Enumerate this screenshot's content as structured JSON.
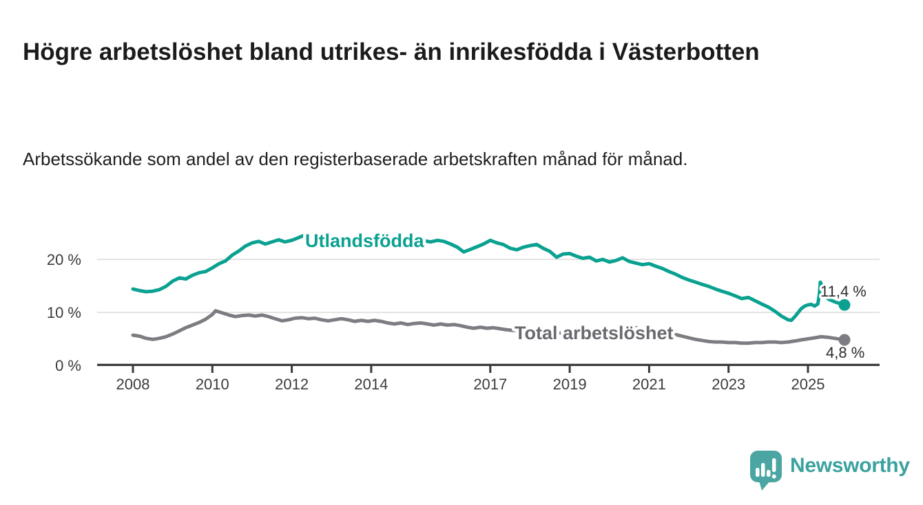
{
  "title": "Högre arbetslöshet bland utrikes- än inrikesfödda i Västerbotten",
  "subtitle": "Arbetssökande som andel av den registerbaserade arbetskraften månad för månad.",
  "branding": {
    "logo_text": "Newsworthy",
    "logo_icon": "bar-chart-speech-bubble-icon",
    "logo_text_color": "#3aa29f",
    "logo_icon_color": "#4ba6a3"
  },
  "chart_data": {
    "type": "line",
    "title": "Högre arbetslöshet bland utrikes- än inrikesfödda i Västerbotten",
    "subtitle": "Arbetssökande som andel av den registerbaserade arbetskraften månad för månad.",
    "x_axis": {
      "ticks": [
        2008,
        2010,
        2012,
        2014,
        2017,
        2019,
        2021,
        2023,
        2025
      ],
      "tick_labels": [
        "2008",
        "2010",
        "2012",
        "2014",
        "2017",
        "2019",
        "2021",
        "2023",
        "2025"
      ],
      "range": [
        2007.1,
        2026.8
      ],
      "grid": false
    },
    "y_axis": {
      "unit": "%",
      "tick_values": [
        0,
        10,
        20
      ],
      "tick_labels": [
        "0 %",
        "10 %",
        "20 %"
      ],
      "range": [
        0,
        26.5
      ],
      "grid": true
    },
    "styles": {
      "axis_color": "#3a3a3a",
      "grid_color": "#dadada",
      "tick_label_color": "#3b3b3b",
      "line_width": 5
    },
    "series": [
      {
        "name": "Utlandsfödda",
        "color": "#0aa191",
        "end_label": "11,4 %",
        "end_value": 11.4,
        "points": [
          [
            2008.0,
            14.4
          ],
          [
            2008.17,
            14.1
          ],
          [
            2008.33,
            13.9
          ],
          [
            2008.5,
            14.0
          ],
          [
            2008.67,
            14.3
          ],
          [
            2008.83,
            14.9
          ],
          [
            2009.0,
            15.9
          ],
          [
            2009.17,
            16.5
          ],
          [
            2009.33,
            16.3
          ],
          [
            2009.5,
            17.0
          ],
          [
            2009.67,
            17.5
          ],
          [
            2009.83,
            17.7
          ],
          [
            2010.0,
            18.4
          ],
          [
            2010.17,
            19.2
          ],
          [
            2010.33,
            19.7
          ],
          [
            2010.5,
            20.8
          ],
          [
            2010.67,
            21.6
          ],
          [
            2010.83,
            22.5
          ],
          [
            2011.0,
            23.1
          ],
          [
            2011.17,
            23.4
          ],
          [
            2011.33,
            22.9
          ],
          [
            2011.5,
            23.3
          ],
          [
            2011.67,
            23.7
          ],
          [
            2011.83,
            23.3
          ],
          [
            2012.0,
            23.6
          ],
          [
            2012.17,
            24.1
          ],
          [
            2012.33,
            24.6
          ],
          [
            2012.5,
            24.2
          ],
          [
            2012.67,
            23.9
          ],
          [
            2012.83,
            23.8
          ],
          [
            2013.0,
            24.0
          ],
          [
            2013.17,
            23.8
          ],
          [
            2013.33,
            23.6
          ],
          [
            2013.5,
            23.8
          ],
          [
            2013.67,
            24.0
          ],
          [
            2013.83,
            23.7
          ],
          [
            2014.0,
            23.9
          ],
          [
            2014.17,
            24.1
          ],
          [
            2014.33,
            23.7
          ],
          [
            2014.5,
            23.5
          ],
          [
            2014.67,
            23.7
          ],
          [
            2014.83,
            23.4
          ],
          [
            2015.0,
            23.6
          ],
          [
            2015.17,
            23.8
          ],
          [
            2015.33,
            23.5
          ],
          [
            2015.5,
            23.3
          ],
          [
            2015.67,
            23.6
          ],
          [
            2015.83,
            23.4
          ],
          [
            2016.0,
            22.9
          ],
          [
            2016.17,
            22.3
          ],
          [
            2016.33,
            21.4
          ],
          [
            2016.5,
            21.9
          ],
          [
            2016.67,
            22.4
          ],
          [
            2016.83,
            22.9
          ],
          [
            2017.0,
            23.6
          ],
          [
            2017.17,
            23.1
          ],
          [
            2017.33,
            22.8
          ],
          [
            2017.5,
            22.1
          ],
          [
            2017.67,
            21.8
          ],
          [
            2017.83,
            22.3
          ],
          [
            2018.0,
            22.6
          ],
          [
            2018.17,
            22.8
          ],
          [
            2018.33,
            22.1
          ],
          [
            2018.5,
            21.5
          ],
          [
            2018.67,
            20.4
          ],
          [
            2018.83,
            21.0
          ],
          [
            2019.0,
            21.1
          ],
          [
            2019.17,
            20.6
          ],
          [
            2019.33,
            20.2
          ],
          [
            2019.5,
            20.4
          ],
          [
            2019.67,
            19.7
          ],
          [
            2019.83,
            20.0
          ],
          [
            2020.0,
            19.5
          ],
          [
            2020.17,
            19.8
          ],
          [
            2020.33,
            20.3
          ],
          [
            2020.5,
            19.6
          ],
          [
            2020.67,
            19.3
          ],
          [
            2020.83,
            19.0
          ],
          [
            2021.0,
            19.2
          ],
          [
            2021.17,
            18.7
          ],
          [
            2021.33,
            18.3
          ],
          [
            2021.5,
            17.7
          ],
          [
            2021.67,
            17.2
          ],
          [
            2021.83,
            16.6
          ],
          [
            2022.0,
            16.1
          ],
          [
            2022.17,
            15.7
          ],
          [
            2022.33,
            15.3
          ],
          [
            2022.5,
            14.9
          ],
          [
            2022.67,
            14.4
          ],
          [
            2022.83,
            14.0
          ],
          [
            2023.0,
            13.6
          ],
          [
            2023.17,
            13.1
          ],
          [
            2023.33,
            12.6
          ],
          [
            2023.5,
            12.8
          ],
          [
            2023.67,
            12.2
          ],
          [
            2023.83,
            11.6
          ],
          [
            2024.0,
            11.0
          ],
          [
            2024.17,
            10.2
          ],
          [
            2024.33,
            9.3
          ],
          [
            2024.5,
            8.6
          ],
          [
            2024.58,
            8.5
          ],
          [
            2024.67,
            9.2
          ],
          [
            2024.83,
            10.7
          ],
          [
            2024.92,
            11.2
          ],
          [
            2025.0,
            11.4
          ],
          [
            2025.08,
            11.5
          ],
          [
            2025.17,
            11.2
          ],
          [
            2025.25,
            11.6
          ],
          [
            2025.29,
            13.6
          ],
          [
            2025.31,
            15.7
          ],
          [
            2025.35,
            15.1
          ],
          [
            2025.42,
            13.1
          ],
          [
            2025.54,
            12.4
          ],
          [
            2025.67,
            12.0
          ],
          [
            2025.79,
            11.7
          ],
          [
            2025.92,
            11.4
          ]
        ]
      },
      {
        "name": "Total arbetslöshet",
        "color": "#7c7c82",
        "end_label": "4,8 %",
        "end_value": 4.8,
        "points": [
          [
            2008.0,
            5.7
          ],
          [
            2008.17,
            5.5
          ],
          [
            2008.33,
            5.1
          ],
          [
            2008.5,
            4.9
          ],
          [
            2008.67,
            5.1
          ],
          [
            2008.83,
            5.4
          ],
          [
            2009.0,
            5.9
          ],
          [
            2009.17,
            6.5
          ],
          [
            2009.33,
            7.1
          ],
          [
            2009.5,
            7.6
          ],
          [
            2009.67,
            8.1
          ],
          [
            2009.83,
            8.7
          ],
          [
            2010.0,
            9.6
          ],
          [
            2010.08,
            10.3
          ],
          [
            2010.25,
            9.9
          ],
          [
            2010.42,
            9.5
          ],
          [
            2010.58,
            9.2
          ],
          [
            2010.75,
            9.4
          ],
          [
            2010.92,
            9.5
          ],
          [
            2011.08,
            9.3
          ],
          [
            2011.25,
            9.5
          ],
          [
            2011.42,
            9.2
          ],
          [
            2011.58,
            8.8
          ],
          [
            2011.75,
            8.4
          ],
          [
            2011.92,
            8.6
          ],
          [
            2012.08,
            8.9
          ],
          [
            2012.25,
            9.0
          ],
          [
            2012.42,
            8.8
          ],
          [
            2012.58,
            8.9
          ],
          [
            2012.75,
            8.6
          ],
          [
            2012.92,
            8.4
          ],
          [
            2013.08,
            8.6
          ],
          [
            2013.25,
            8.8
          ],
          [
            2013.42,
            8.6
          ],
          [
            2013.58,
            8.3
          ],
          [
            2013.75,
            8.5
          ],
          [
            2013.92,
            8.3
          ],
          [
            2014.08,
            8.5
          ],
          [
            2014.25,
            8.3
          ],
          [
            2014.42,
            8.0
          ],
          [
            2014.58,
            7.8
          ],
          [
            2014.75,
            8.0
          ],
          [
            2014.92,
            7.7
          ],
          [
            2015.08,
            7.9
          ],
          [
            2015.25,
            8.0
          ],
          [
            2015.42,
            7.8
          ],
          [
            2015.58,
            7.6
          ],
          [
            2015.75,
            7.8
          ],
          [
            2015.92,
            7.6
          ],
          [
            2016.08,
            7.7
          ],
          [
            2016.25,
            7.5
          ],
          [
            2016.42,
            7.2
          ],
          [
            2016.58,
            7.0
          ],
          [
            2016.75,
            7.2
          ],
          [
            2016.92,
            7.0
          ],
          [
            2017.08,
            7.1
          ],
          [
            2017.25,
            6.9
          ],
          [
            2017.42,
            6.7
          ],
          [
            2017.58,
            6.6
          ],
          [
            2017.75,
            6.5
          ],
          [
            2018.0,
            6.3
          ],
          [
            2018.33,
            6.2
          ],
          [
            2018.67,
            6.1
          ],
          [
            2019.0,
            6.0
          ],
          [
            2019.33,
            5.9
          ],
          [
            2019.67,
            5.9
          ],
          [
            2020.0,
            6.2
          ],
          [
            2020.25,
            7.1
          ],
          [
            2020.5,
            7.3
          ],
          [
            2020.75,
            7.0
          ],
          [
            2021.0,
            6.6
          ],
          [
            2021.33,
            6.2
          ],
          [
            2021.67,
            5.8
          ],
          [
            2022.0,
            5.2
          ],
          [
            2022.17,
            4.9
          ],
          [
            2022.33,
            4.7
          ],
          [
            2022.5,
            4.5
          ],
          [
            2022.67,
            4.4
          ],
          [
            2022.83,
            4.4
          ],
          [
            2023.0,
            4.3
          ],
          [
            2023.17,
            4.3
          ],
          [
            2023.33,
            4.2
          ],
          [
            2023.5,
            4.2
          ],
          [
            2023.67,
            4.3
          ],
          [
            2023.83,
            4.3
          ],
          [
            2024.0,
            4.4
          ],
          [
            2024.17,
            4.4
          ],
          [
            2024.33,
            4.3
          ],
          [
            2024.5,
            4.4
          ],
          [
            2024.67,
            4.6
          ],
          [
            2024.83,
            4.8
          ],
          [
            2025.0,
            5.0
          ],
          [
            2025.17,
            5.2
          ],
          [
            2025.33,
            5.4
          ],
          [
            2025.5,
            5.3
          ],
          [
            2025.67,
            5.1
          ],
          [
            2025.83,
            4.9
          ],
          [
            2025.92,
            4.8
          ]
        ]
      }
    ]
  }
}
